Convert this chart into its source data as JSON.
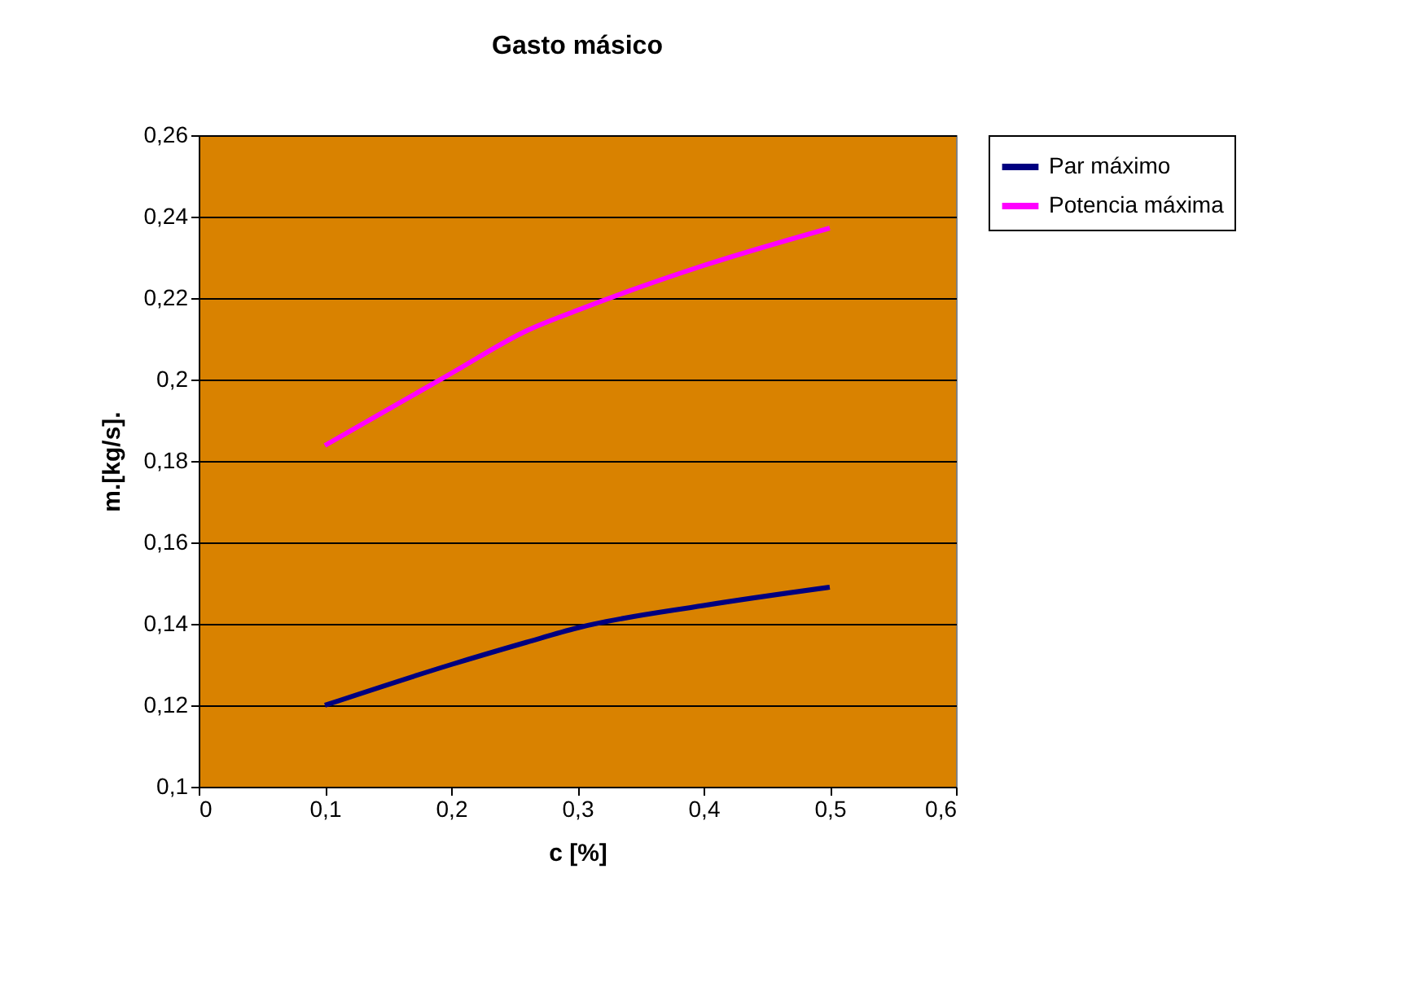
{
  "chart_data": {
    "type": "line",
    "title": "Gasto másico",
    "xlabel": "c [%]",
    "ylabel": "m.[kg/s].",
    "x": [
      0.1,
      0.2,
      0.26,
      0.3,
      0.4,
      0.5
    ],
    "series": [
      {
        "name": "Par máximo",
        "color": "#000080",
        "values": [
          0.12,
          0.13,
          0.1355,
          0.139,
          0.1445,
          0.149
        ]
      },
      {
        "name": "Potencia máxima",
        "color": "#ff00ff",
        "values": [
          0.1838,
          0.2015,
          0.212,
          0.217,
          0.228,
          0.2372
        ]
      }
    ],
    "xlim": [
      0,
      0.6
    ],
    "ylim": [
      0.1,
      0.26
    ],
    "xticks": [
      0,
      {
        "value": 0.1,
        "label": "0,1"
      },
      {
        "value": 0.2,
        "label": "0,2"
      },
      {
        "value": 0.3,
        "label": "0,3"
      },
      {
        "value": 0.4,
        "label": "0,4"
      },
      {
        "value": 0.5,
        "label": "0,5"
      },
      {
        "value": 0.6,
        "label": "0,6"
      }
    ],
    "yticks": [
      {
        "value": 0.1,
        "label": "0,1"
      },
      {
        "value": 0.12,
        "label": "0,12"
      },
      {
        "value": 0.14,
        "label": "0,14"
      },
      {
        "value": 0.16,
        "label": "0,16"
      },
      {
        "value": 0.18,
        "label": "0,18"
      },
      {
        "value": 0.2,
        "label": "0,2"
      },
      {
        "value": 0.22,
        "label": "0,22"
      },
      {
        "value": 0.24,
        "label": "0,24"
      },
      {
        "value": 0.26,
        "label": "0,26"
      }
    ],
    "grid": "y",
    "legend": "right",
    "marker": "none",
    "line_style": "solid"
  }
}
